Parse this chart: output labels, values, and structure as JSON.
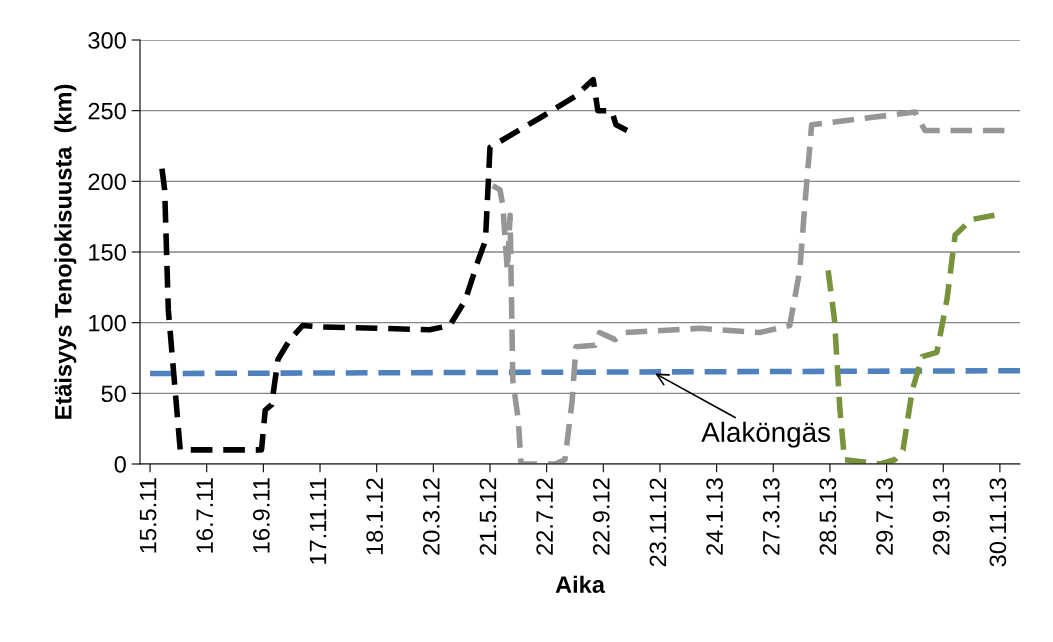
{
  "chart_data": {
    "type": "line",
    "xlabel": "Aika",
    "ylabel": "Etäisyys Tenojokisuusta  (km)",
    "xlim": [
      "2011-05-04",
      "2013-12-22"
    ],
    "xticks": [
      {
        "value": "2011-05-15",
        "label": "15.5.11"
      },
      {
        "value": "2011-07-16",
        "label": "16.7.11"
      },
      {
        "value": "2011-09-16",
        "label": "16.9.11"
      },
      {
        "value": "2011-11-17",
        "label": "17.11.11"
      },
      {
        "value": "2012-01-18",
        "label": "18.1.12"
      },
      {
        "value": "2012-03-20",
        "label": "20.3.12"
      },
      {
        "value": "2012-05-21",
        "label": "21.5.12"
      },
      {
        "value": "2012-07-22",
        "label": "22.7.12"
      },
      {
        "value": "2012-09-22",
        "label": "22.9.12"
      },
      {
        "value": "2012-11-23",
        "label": "23.11.12"
      },
      {
        "value": "2013-01-24",
        "label": "24.1.13"
      },
      {
        "value": "2013-03-27",
        "label": "27.3.13"
      },
      {
        "value": "2013-05-28",
        "label": "28.5.13"
      },
      {
        "value": "2013-07-29",
        "label": "29.7.13"
      },
      {
        "value": "2013-09-29",
        "label": "29.9.13"
      },
      {
        "value": "2013-11-30",
        "label": "30.11.13"
      }
    ],
    "ylim": [
      0,
      300
    ],
    "yticks": [
      0,
      50,
      100,
      150,
      200,
      250,
      300
    ],
    "grid": "y",
    "legend": false,
    "marker": "none",
    "line_style": "dashed",
    "annotations": [
      {
        "text": "Alaköngäs",
        "x": "2012-11-15",
        "y": 65
      }
    ],
    "series": [
      {
        "color": "#4f81bd",
        "x": [
          "2011-05-15",
          "2013-12-22"
        ],
        "values": [
          64,
          66
        ]
      },
      {
        "color": "#000000",
        "x": [
          "2011-05-28",
          "2011-05-31",
          "2011-06-04",
          "2011-06-17",
          "2011-09-14",
          "2011-09-18",
          "2011-09-25",
          "2011-10-02",
          "2011-10-15",
          "2011-10-29",
          "2011-11-17",
          "2012-01-22",
          "2012-03-16",
          "2012-04-07",
          "2012-04-24",
          "2012-05-08",
          "2012-05-16",
          "2012-05-21",
          "2012-07-15",
          "2012-08-22",
          "2012-09-11",
          "2012-09-16",
          "2012-10-01",
          "2012-10-06",
          "2012-10-18"
        ],
        "values": [
          209,
          194,
          109,
          10,
          10,
          38,
          42,
          74,
          88,
          98,
          97,
          96,
          95,
          98,
          116,
          144,
          158,
          224,
          245,
          260,
          272,
          250,
          250,
          240,
          236
        ]
      },
      {
        "color": "#969696",
        "x": [
          "2012-05-24",
          "2012-06-01",
          "2012-06-04",
          "2012-06-09",
          "2012-06-12",
          "2012-06-15",
          "2012-06-21",
          "2012-06-24",
          "2012-07-31",
          "2012-08-11",
          "2012-08-19",
          "2012-08-23",
          "2012-09-13",
          "2012-09-18",
          "2012-10-05",
          "2012-10-16",
          "2013-01-06",
          "2013-03-12",
          "2013-04-14",
          "2013-04-25",
          "2013-05-01",
          "2013-05-08",
          "2013-08-29",
          "2013-09-09",
          "2013-12-05"
        ],
        "values": [
          197,
          194,
          183,
          137,
          176,
          59,
          31,
          0,
          0,
          3,
          45,
          83,
          84,
          93,
          88,
          93,
          96,
          93,
          98,
          137,
          187,
          240,
          249,
          236,
          236
        ]
      },
      {
        "color": "#77933c",
        "x": [
          "2013-05-26",
          "2013-06-02",
          "2013-06-08",
          "2013-06-13",
          "2013-07-22",
          "2013-08-07",
          "2013-08-16",
          "2013-08-26",
          "2013-09-06",
          "2013-09-22",
          "2013-10-03",
          "2013-10-12",
          "2013-10-30",
          "2013-11-24"
        ],
        "values": [
          137,
          102,
          38,
          3,
          0,
          3,
          10,
          52,
          76,
          79,
          116,
          162,
          173,
          176
        ]
      }
    ]
  }
}
